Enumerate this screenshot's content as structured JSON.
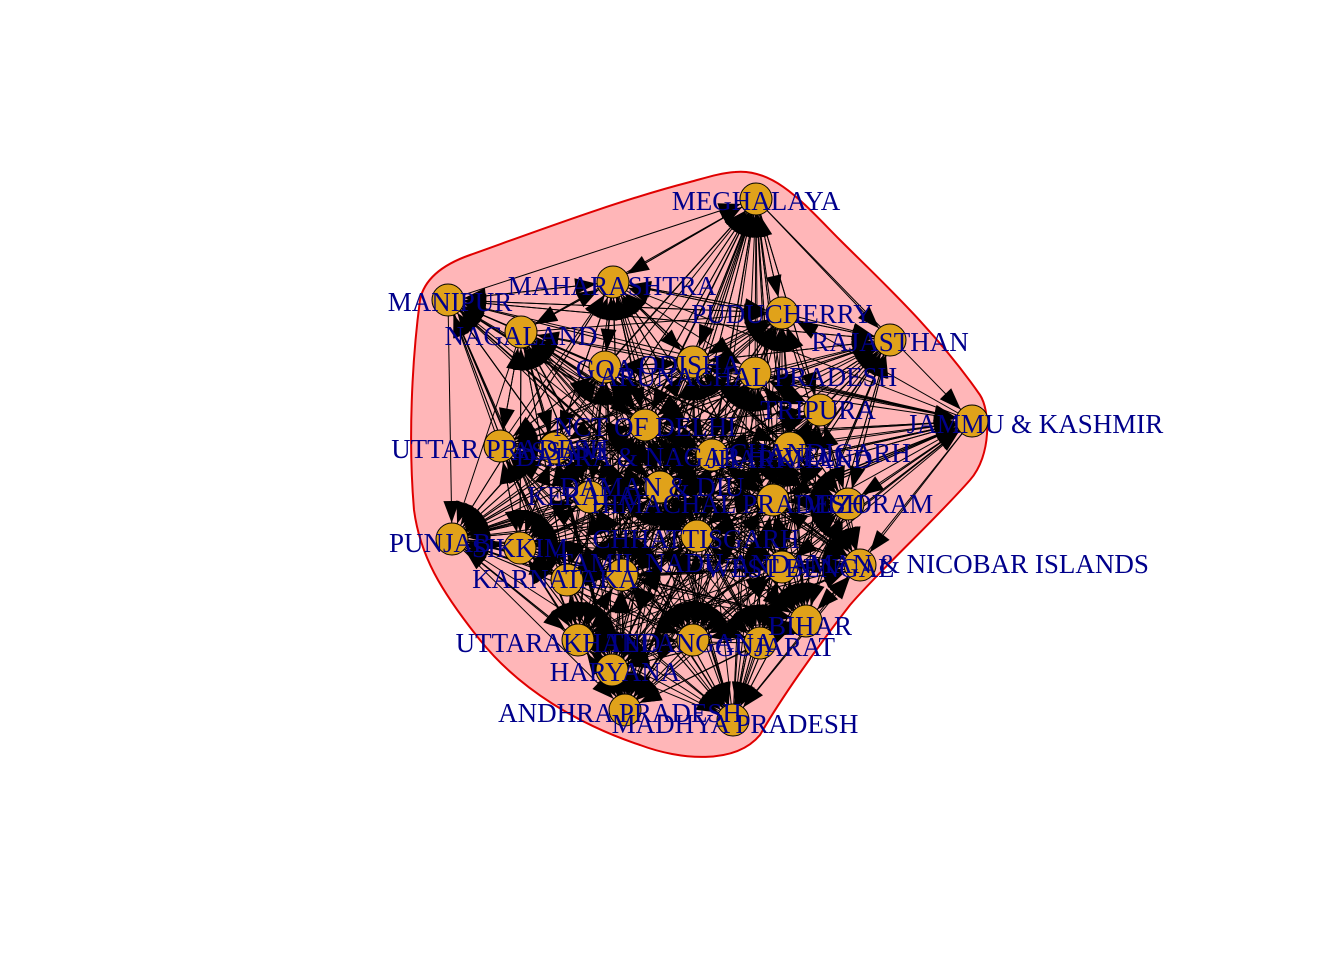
{
  "graph": {
    "colors": {
      "node_fill": "#e0a21a",
      "node_stroke": "#000000",
      "label": "#00008b",
      "edge": "#000000",
      "hull_fill": "#ffb6b8",
      "hull_stroke": "#e00000"
    },
    "nodes": [
      {
        "id": "MEGHALAYA",
        "label": "MEGHALAYA"
      },
      {
        "id": "MAHARASHTRA",
        "label": "MAHARASHTRA"
      },
      {
        "id": "MANIPUR",
        "label": "MANIPUR"
      },
      {
        "id": "NAGALAND",
        "label": "NAGALAND"
      },
      {
        "id": "PUDUCHERRY",
        "label": "PUDUCHERRY"
      },
      {
        "id": "RAJASTHAN",
        "label": "RAJASTHAN"
      },
      {
        "id": "JAMMU & KASHMIR",
        "label": "JAMMU & KASHMIR"
      },
      {
        "id": "ODISHA",
        "label": "ODISHA"
      },
      {
        "id": "GOA",
        "label": "GOA"
      },
      {
        "id": "ARUNACHAL PRADESH",
        "label": "ARUNACHAL PRADESH"
      },
      {
        "id": "TRIPURA",
        "label": "TRIPURA"
      },
      {
        "id": "NCT OF DELHI",
        "label": "NCT OF DELHI"
      },
      {
        "id": "UTTAR PRADESH",
        "label": "UTTAR PRADESH"
      },
      {
        "id": "ASSAM",
        "label": "ASSAM"
      },
      {
        "id": "DADRA & NAGAR HAVELI",
        "label": "DADRA & NAGAR HAVELI"
      },
      {
        "id": "CHANDIGARH",
        "label": "CHANDIGARH"
      },
      {
        "id": "JHARKHAND",
        "label": "JHARKHAND"
      },
      {
        "id": "DAMAN & DIU",
        "label": "DAMAN & DIU"
      },
      {
        "id": "KERALA",
        "label": "KERALA"
      },
      {
        "id": "HIMACHAL PRADESH",
        "label": "HIMACHAL PRADESH"
      },
      {
        "id": "MIZORAM",
        "label": "MIZORAM"
      },
      {
        "id": "PUNJAB",
        "label": "PUNJAB"
      },
      {
        "id": "SIKKIM",
        "label": "SIKKIM"
      },
      {
        "id": "CHHATTISGARH",
        "label": "CHHATTISGARH"
      },
      {
        "id": "KARNATAKA",
        "label": "KARNATAKA"
      },
      {
        "id": "TAMIL NADU",
        "label": "TAMIL NADU"
      },
      {
        "id": "WEST BENGAL",
        "label": "WEST BENGAL"
      },
      {
        "id": "ANDAMAN & NICOBAR ISLANDS",
        "label": "ANDAMAN & NICOBAR ISLANDS"
      },
      {
        "id": "BIHAR",
        "label": "BIHAR"
      },
      {
        "id": "UTTARAKHAND",
        "label": "UTTARAKHAND"
      },
      {
        "id": "TELANGANA",
        "label": "TELANGANA"
      },
      {
        "id": "GUJARAT",
        "label": "GUJARAT"
      },
      {
        "id": "HARYANA",
        "label": "HARYANA"
      },
      {
        "id": "ANDHRA PRADESH",
        "label": "ANDHRA PRADESH"
      },
      {
        "id": "MADHYA PRADESH",
        "label": "MADHYA PRADESH"
      }
    ]
  }
}
